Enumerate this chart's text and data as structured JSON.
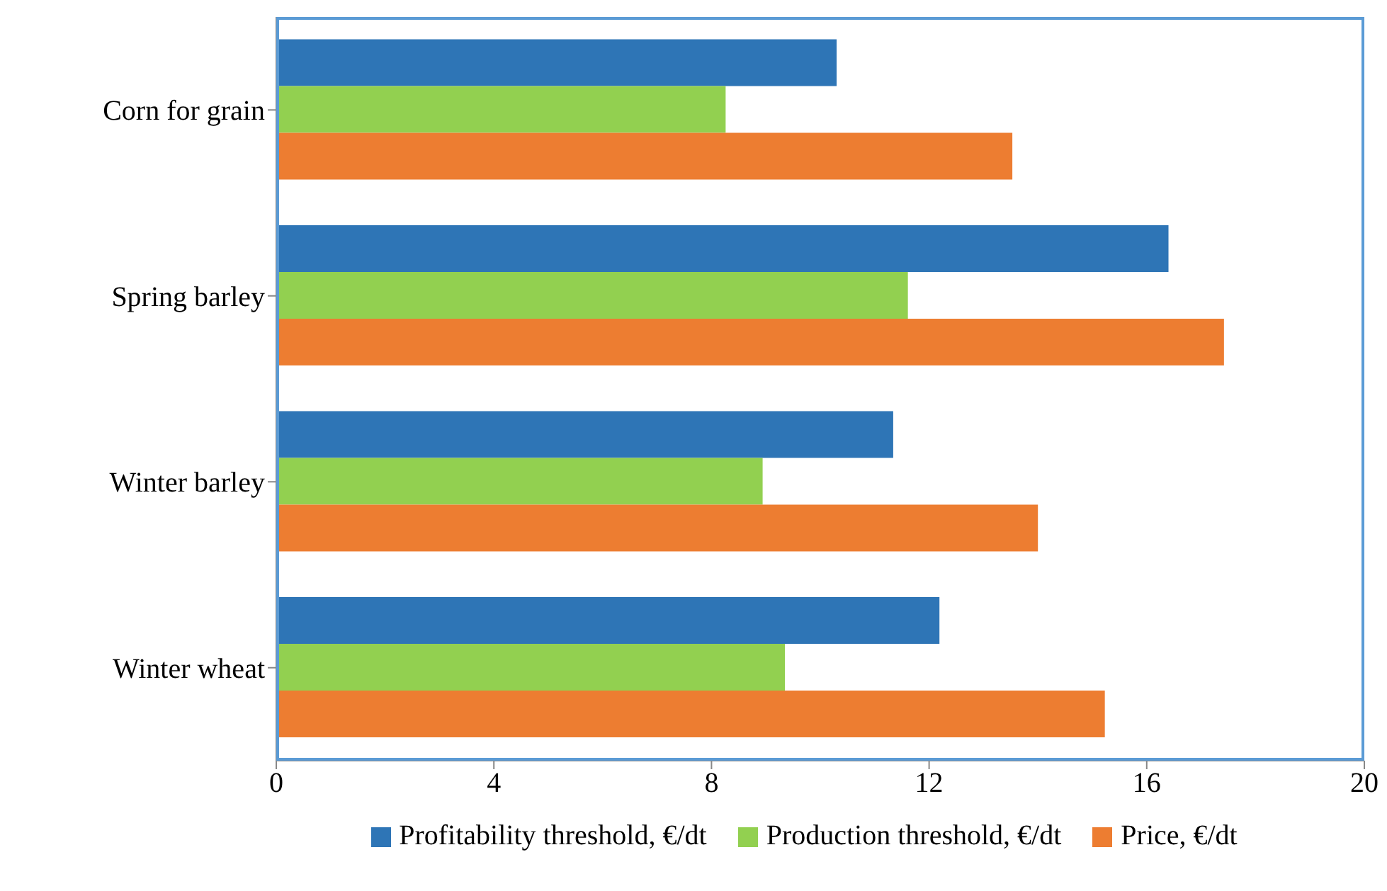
{
  "chart_data": {
    "type": "bar",
    "orientation": "horizontal",
    "categories": [
      "Corn for grain",
      "Spring barley",
      "Winter barley",
      "Winter wheat"
    ],
    "series": [
      {
        "name": "Profitability threshold, €/dt",
        "color": "#2e75b6",
        "values": [
          10.3,
          16.4,
          11.34,
          12.19
        ]
      },
      {
        "name": "Production threshold, €/dt",
        "color": "#92d050",
        "values": [
          8.26,
          11.61,
          8.94,
          9.35
        ]
      },
      {
        "name": "Price, €/dt",
        "color": "#ed7d31",
        "values": [
          13.53,
          17.42,
          14.0,
          15.23
        ]
      }
    ],
    "xlim": [
      0,
      20
    ],
    "xticks": [
      0,
      4,
      8,
      12,
      16,
      20
    ],
    "legend": "bottom"
  }
}
